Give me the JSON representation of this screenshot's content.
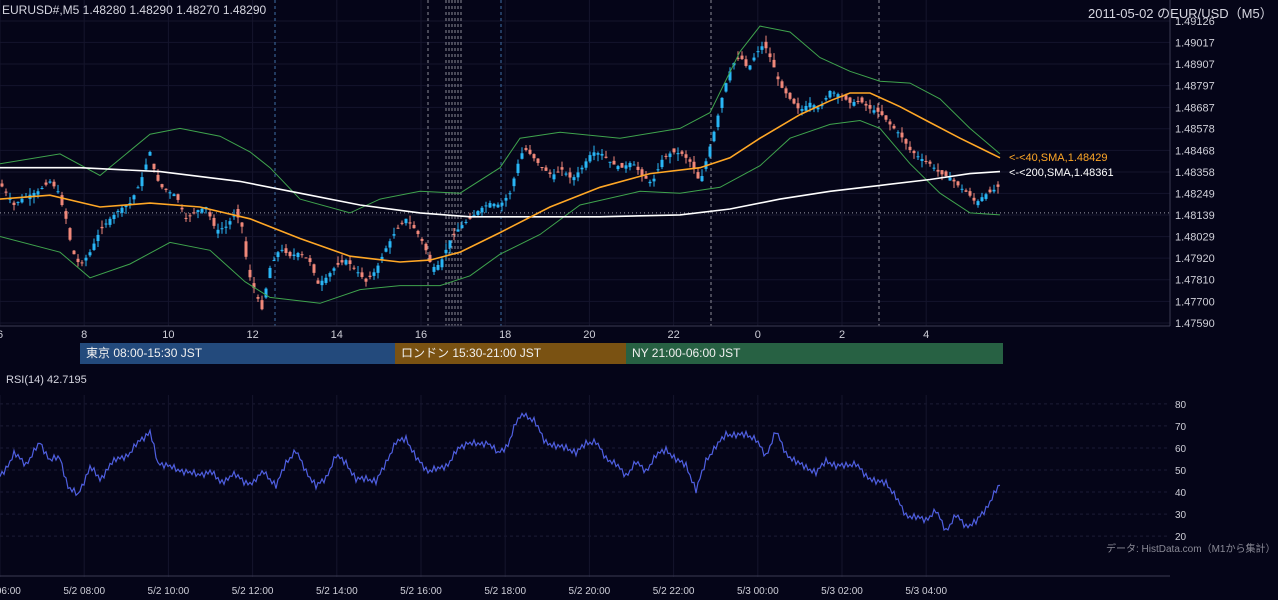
{
  "header": {
    "symbol_ohlc": "EURUSD#,M5 1.48280 1.48290 1.48270 1.48290",
    "chart_title": "2011-05-02 のEUR/USD（M5）"
  },
  "sessions": [
    {
      "label": "東京 08:00-15:30 JST",
      "color": "#234a7c"
    },
    {
      "label": "ロンドン 15:30-21:00 JST",
      "color": "#7a5212"
    },
    {
      "label": "NY 21:00-06:00 JST",
      "color": "#276143"
    }
  ],
  "rsi_panel": {
    "label": "RSI(14) 42.7195"
  },
  "footer_credit": "データ: HistData.com（M1から集計）",
  "colors": {
    "background": "#050518",
    "up_candle": "#29b6f6",
    "down_candle": "#f0887a",
    "bollinger": "#3fa34d",
    "sma40": "#ffa726",
    "sma200": "#ffffff",
    "rsi_line": "#4f5fe0"
  },
  "chart_data": [
    {
      "type": "candlestick",
      "timeframe": "M5",
      "y_ticks": [
        "1.49126",
        "1.49017",
        "1.48907",
        "1.48797",
        "1.48687",
        "1.48578",
        "1.48468",
        "1.48358",
        "1.48249",
        "1.48139",
        "1.48029",
        "1.47920",
        "1.47810",
        "1.47700",
        "1.47590"
      ],
      "ylim": [
        1.4759,
        1.49126
      ],
      "x_ticks": [
        "6",
        "8",
        "10",
        "12",
        "14",
        "16",
        "18",
        "20",
        "22",
        "0",
        "2",
        "4"
      ],
      "current_price": 1.4829,
      "indicators": [
        {
          "name": "SMA 40",
          "label": "<-<40,SMA,1.48429",
          "last_value": 1.48429
        },
        {
          "name": "SMA 200",
          "label": "<-<200,SMA,1.48361",
          "last_value": 1.48361
        },
        {
          "name": "Bollinger Bands"
        }
      ],
      "close_path": [
        [
          0,
          1.483
        ],
        [
          14,
          1.4819
        ],
        [
          24,
          1.4823
        ],
        [
          38,
          1.4826
        ],
        [
          50,
          1.4831
        ],
        [
          58,
          1.4826
        ],
        [
          66,
          1.4812
        ],
        [
          72,
          1.4796
        ],
        [
          80,
          1.4788
        ],
        [
          90,
          1.4795
        ],
        [
          100,
          1.4806
        ],
        [
          110,
          1.4812
        ],
        [
          120,
          1.4817
        ],
        [
          130,
          1.482
        ],
        [
          140,
          1.483
        ],
        [
          150,
          1.4846
        ],
        [
          156,
          1.4833
        ],
        [
          162,
          1.4828
        ],
        [
          168,
          1.4826
        ],
        [
          176,
          1.4824
        ],
        [
          186,
          1.4812
        ],
        [
          196,
          1.4816
        ],
        [
          206,
          1.4818
        ],
        [
          216,
          1.4806
        ],
        [
          226,
          1.4808
        ],
        [
          236,
          1.4815
        ],
        [
          242,
          1.4808
        ],
        [
          248,
          1.4785
        ],
        [
          256,
          1.4774
        ],
        [
          262,
          1.4766
        ],
        [
          270,
          1.4787
        ],
        [
          280,
          1.4797
        ],
        [
          290,
          1.4793
        ],
        [
          300,
          1.4795
        ],
        [
          310,
          1.479
        ],
        [
          318,
          1.4779
        ],
        [
          326,
          1.4782
        ],
        [
          336,
          1.4788
        ],
        [
          346,
          1.4791
        ],
        [
          356,
          1.4786
        ],
        [
          366,
          1.478
        ],
        [
          376,
          1.4786
        ],
        [
          386,
          1.4797
        ],
        [
          396,
          1.4806
        ],
        [
          406,
          1.4812
        ],
        [
          416,
          1.4806
        ],
        [
          424,
          1.4799
        ],
        [
          432,
          1.4787
        ],
        [
          440,
          1.4789
        ],
        [
          450,
          1.4801
        ],
        [
          460,
          1.4808
        ],
        [
          470,
          1.4812
        ],
        [
          480,
          1.4817
        ],
        [
          490,
          1.482
        ],
        [
          500,
          1.4819
        ],
        [
          510,
          1.4825
        ],
        [
          518,
          1.484
        ],
        [
          524,
          1.4848
        ],
        [
          532,
          1.4844
        ],
        [
          542,
          1.4838
        ],
        [
          552,
          1.4834
        ],
        [
          562,
          1.4837
        ],
        [
          572,
          1.4832
        ],
        [
          582,
          1.4838
        ],
        [
          592,
          1.4846
        ],
        [
          602,
          1.4845
        ],
        [
          612,
          1.484
        ],
        [
          622,
          1.4838
        ],
        [
          632,
          1.4841
        ],
        [
          642,
          1.4834
        ],
        [
          652,
          1.483
        ],
        [
          662,
          1.4842
        ],
        [
          672,
          1.4846
        ],
        [
          682,
          1.4845
        ],
        [
          692,
          1.484
        ],
        [
          700,
          1.483
        ],
        [
          708,
          1.4845
        ],
        [
          716,
          1.486
        ],
        [
          724,
          1.4878
        ],
        [
          732,
          1.489
        ],
        [
          740,
          1.4895
        ],
        [
          748,
          1.4888
        ],
        [
          756,
          1.4896
        ],
        [
          764,
          1.4901
        ],
        [
          772,
          1.4892
        ],
        [
          780,
          1.488
        ],
        [
          790,
          1.4873
        ],
        [
          800,
          1.4867
        ],
        [
          810,
          1.4871
        ],
        [
          820,
          1.4868
        ],
        [
          830,
          1.4877
        ],
        [
          840,
          1.4875
        ],
        [
          850,
          1.4871
        ],
        [
          860,
          1.4872
        ],
        [
          870,
          1.4868
        ],
        [
          880,
          1.4866
        ],
        [
          890,
          1.486
        ],
        [
          900,
          1.4855
        ],
        [
          910,
          1.4847
        ],
        [
          920,
          1.4843
        ],
        [
          930,
          1.484
        ],
        [
          940,
          1.4835
        ],
        [
          950,
          1.4833
        ],
        [
          960,
          1.4828
        ],
        [
          968,
          1.4825
        ],
        [
          976,
          1.482
        ],
        [
          984,
          1.4824
        ],
        [
          992,
          1.4826
        ],
        [
          1000,
          1.4829
        ]
      ],
      "sma40_path": [
        [
          0,
          1.4822
        ],
        [
          50,
          1.4824
        ],
        [
          100,
          1.4818
        ],
        [
          150,
          1.482
        ],
        [
          200,
          1.4818
        ],
        [
          250,
          1.4812
        ],
        [
          300,
          1.4802
        ],
        [
          350,
          1.4793
        ],
        [
          400,
          1.479
        ],
        [
          430,
          1.4791
        ],
        [
          460,
          1.4795
        ],
        [
          500,
          1.4805
        ],
        [
          550,
          1.4818
        ],
        [
          600,
          1.4828
        ],
        [
          650,
          1.4835
        ],
        [
          700,
          1.4838
        ],
        [
          730,
          1.4843
        ],
        [
          760,
          1.4853
        ],
        [
          800,
          1.4865
        ],
        [
          830,
          1.4872
        ],
        [
          850,
          1.4876
        ],
        [
          870,
          1.4876
        ],
        [
          900,
          1.4869
        ],
        [
          930,
          1.4861
        ],
        [
          960,
          1.4853
        ],
        [
          980,
          1.4848
        ],
        [
          1000,
          1.4843
        ]
      ],
      "sma200_path": [
        [
          0,
          1.4838
        ],
        [
          80,
          1.4838
        ],
        [
          160,
          1.4836
        ],
        [
          240,
          1.4831
        ],
        [
          300,
          1.4825
        ],
        [
          360,
          1.4819
        ],
        [
          420,
          1.4815
        ],
        [
          470,
          1.4813
        ],
        [
          520,
          1.4813
        ],
        [
          600,
          1.4813
        ],
        [
          680,
          1.4814
        ],
        [
          730,
          1.4817
        ],
        [
          780,
          1.4822
        ],
        [
          830,
          1.4826
        ],
        [
          880,
          1.4829
        ],
        [
          930,
          1.4832
        ],
        [
          970,
          1.4835
        ],
        [
          1000,
          1.4836
        ]
      ],
      "bb_upper_path": [
        [
          0,
          1.484
        ],
        [
          60,
          1.4845
        ],
        [
          100,
          1.4834
        ],
        [
          150,
          1.4855
        ],
        [
          180,
          1.4858
        ],
        [
          220,
          1.4854
        ],
        [
          250,
          1.4846
        ],
        [
          270,
          1.4838
        ],
        [
          300,
          1.4822
        ],
        [
          350,
          1.4815
        ],
        [
          380,
          1.4822
        ],
        [
          420,
          1.4826
        ],
        [
          460,
          1.4825
        ],
        [
          500,
          1.4838
        ],
        [
          520,
          1.4853
        ],
        [
          560,
          1.4856
        ],
        [
          620,
          1.4853
        ],
        [
          680,
          1.4858
        ],
        [
          710,
          1.4866
        ],
        [
          740,
          1.4897
        ],
        [
          760,
          1.491
        ],
        [
          790,
          1.4907
        ],
        [
          820,
          1.4894
        ],
        [
          850,
          1.4887
        ],
        [
          880,
          1.4882
        ],
        [
          910,
          1.4881
        ],
        [
          940,
          1.4873
        ],
        [
          970,
          1.4858
        ],
        [
          1000,
          1.4845
        ]
      ],
      "bb_lower_path": [
        [
          0,
          1.4803
        ],
        [
          60,
          1.4795
        ],
        [
          90,
          1.4782
        ],
        [
          130,
          1.4789
        ],
        [
          170,
          1.48
        ],
        [
          210,
          1.4796
        ],
        [
          245,
          1.478
        ],
        [
          270,
          1.4772
        ],
        [
          320,
          1.4769
        ],
        [
          360,
          1.4776
        ],
        [
          400,
          1.4778
        ],
        [
          440,
          1.4778
        ],
        [
          470,
          1.4783
        ],
        [
          500,
          1.4794
        ],
        [
          540,
          1.4804
        ],
        [
          580,
          1.4819
        ],
        [
          640,
          1.4826
        ],
        [
          680,
          1.4825
        ],
        [
          720,
          1.4828
        ],
        [
          760,
          1.4839
        ],
        [
          790,
          1.4853
        ],
        [
          830,
          1.486
        ],
        [
          860,
          1.4862
        ],
        [
          880,
          1.4858
        ],
        [
          910,
          1.484
        ],
        [
          940,
          1.4825
        ],
        [
          970,
          1.4815
        ],
        [
          1000,
          1.4814
        ]
      ]
    },
    {
      "type": "line",
      "name": "RSI(14)",
      "y_ticks": [
        "80",
        "70",
        "60",
        "50",
        "40",
        "30",
        "20"
      ],
      "ylim": [
        16,
        84
      ],
      "last_value": 42.7195,
      "x_ticks": [
        "5/2 06:00",
        "5/2 08:00",
        "5/2 10:00",
        "5/2 12:00",
        "5/2 14:00",
        "5/2 16:00",
        "5/2 18:00",
        "5/2 20:00",
        "5/2 22:00",
        "5/3 00:00",
        "5/3 02:00",
        "5/3 04:00"
      ],
      "path": [
        [
          0,
          47
        ],
        [
          14,
          57
        ],
        [
          26,
          53
        ],
        [
          40,
          62
        ],
        [
          50,
          55
        ],
        [
          60,
          55
        ],
        [
          68,
          43
        ],
        [
          78,
          38
        ],
        [
          90,
          52
        ],
        [
          100,
          45
        ],
        [
          110,
          53
        ],
        [
          120,
          55
        ],
        [
          130,
          58
        ],
        [
          140,
          63
        ],
        [
          150,
          68
        ],
        [
          158,
          52
        ],
        [
          168,
          53
        ],
        [
          178,
          49
        ],
        [
          188,
          50
        ],
        [
          198,
          47
        ],
        [
          210,
          50
        ],
        [
          220,
          44
        ],
        [
          232,
          48
        ],
        [
          244,
          45
        ],
        [
          254,
          44
        ],
        [
          264,
          50
        ],
        [
          276,
          42
        ],
        [
          286,
          54
        ],
        [
          296,
          58
        ],
        [
          306,
          50
        ],
        [
          316,
          42
        ],
        [
          326,
          47
        ],
        [
          336,
          56
        ],
        [
          346,
          54
        ],
        [
          356,
          45
        ],
        [
          366,
          47
        ],
        [
          376,
          44
        ],
        [
          386,
          54
        ],
        [
          396,
          62
        ],
        [
          406,
          65
        ],
        [
          416,
          55
        ],
        [
          428,
          50
        ],
        [
          438,
          50
        ],
        [
          448,
          53
        ],
        [
          458,
          59
        ],
        [
          468,
          63
        ],
        [
          478,
          61
        ],
        [
          488,
          63
        ],
        [
          498,
          57
        ],
        [
          508,
          62
        ],
        [
          516,
          71
        ],
        [
          524,
          76
        ],
        [
          534,
          72
        ],
        [
          544,
          64
        ],
        [
          556,
          60
        ],
        [
          566,
          61
        ],
        [
          576,
          57
        ],
        [
          586,
          63
        ],
        [
          596,
          62
        ],
        [
          606,
          56
        ],
        [
          616,
          52
        ],
        [
          626,
          48
        ],
        [
          636,
          53
        ],
        [
          646,
          50
        ],
        [
          656,
          56
        ],
        [
          666,
          60
        ],
        [
          676,
          54
        ],
        [
          686,
          53
        ],
        [
          696,
          40
        ],
        [
          706,
          55
        ],
        [
          716,
          60
        ],
        [
          726,
          67
        ],
        [
          736,
          65
        ],
        [
          746,
          67
        ],
        [
          756,
          63
        ],
        [
          766,
          57
        ],
        [
          776,
          67
        ],
        [
          786,
          58
        ],
        [
          796,
          53
        ],
        [
          806,
          52
        ],
        [
          816,
          48
        ],
        [
          826,
          55
        ],
        [
          836,
          51
        ],
        [
          846,
          53
        ],
        [
          856,
          52
        ],
        [
          866,
          48
        ],
        [
          876,
          44
        ],
        [
          886,
          45
        ],
        [
          896,
          37
        ],
        [
          906,
          30
        ],
        [
          916,
          28
        ],
        [
          926,
          28
        ],
        [
          936,
          31
        ],
        [
          946,
          23
        ],
        [
          956,
          29
        ],
        [
          966,
          25
        ],
        [
          976,
          26
        ],
        [
          986,
          33
        ],
        [
          1000,
          43
        ]
      ]
    }
  ]
}
